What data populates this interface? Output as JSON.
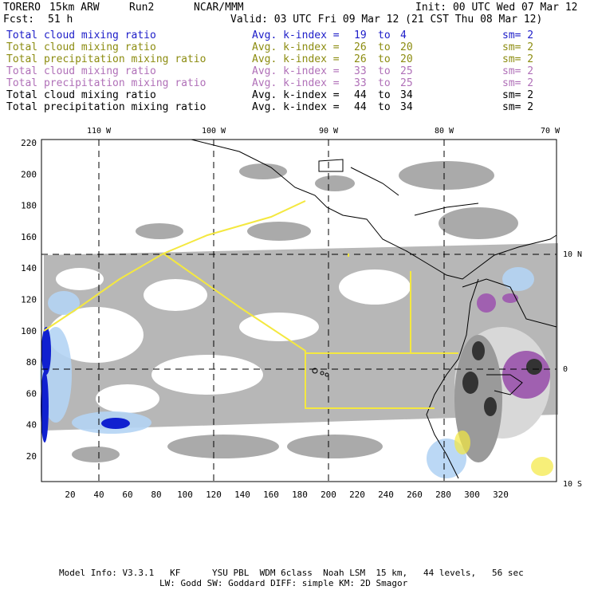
{
  "header": {
    "model": "TORERO",
    "resolution": "15km ARW",
    "run": "Run2",
    "org": "NCAR/MMM",
    "init": "Init: 00 UTC Wed 07 Mar 12",
    "fcst_label": "Fcst:",
    "fcst_value": "51 h",
    "valid": "Valid: 03 UTC Fri 09 Mar 12 (21 CST Thu 08 Mar 12)"
  },
  "fields": [
    {
      "name": "Total cloud mixing ratio",
      "k": "Avg. k-index =",
      "k1": "19",
      "to": "to",
      "k2": "4",
      "sm": "sm= 2",
      "color": "#1c1cc8"
    },
    {
      "name": "Total cloud mixing ratio",
      "k": "Avg. k-index =",
      "k1": "26",
      "to": "to",
      "k2": "20",
      "sm": "sm= 2",
      "color": "#8c8c10"
    },
    {
      "name": "Total precipitation mixing ratio",
      "k": "Avg. k-index =",
      "k1": "26",
      "to": "to",
      "k2": "20",
      "sm": "sm= 2",
      "color": "#8c8c10"
    },
    {
      "name": "Total cloud mixing ratio",
      "k": "Avg. k-index =",
      "k1": "33",
      "to": "to",
      "k2": "25",
      "sm": "sm= 2",
      "color": "#b070b8"
    },
    {
      "name": "Total precipitation mixing ratio",
      "k": "Avg. k-index =",
      "k1": "33",
      "to": "to",
      "k2": "25",
      "sm": "sm= 2",
      "color": "#b070b8"
    },
    {
      "name": "Total cloud mixing ratio",
      "k": "Avg. k-index =",
      "k1": "44",
      "to": "to",
      "k2": "34",
      "sm": "sm= 2",
      "color": "#000000"
    },
    {
      "name": "Total precipitation mixing ratio",
      "k": "Avg. k-index =",
      "k1": "44",
      "to": "to",
      "k2": "34",
      "sm": "sm= 2",
      "color": "#000000"
    }
  ],
  "map": {
    "lon_labels": [
      "110 W",
      "100 W",
      "90 W",
      "80 W",
      "70 W"
    ],
    "lat_labels": [
      "10 N",
      "0",
      "10 S"
    ],
    "x_ticks": [
      "20",
      "40",
      "60",
      "80",
      "100",
      "120",
      "140",
      "160",
      "180",
      "200",
      "220",
      "240",
      "260",
      "280",
      "300",
      "320"
    ],
    "y_ticks": [
      "20",
      "40",
      "60",
      "80",
      "100",
      "120",
      "140",
      "160",
      "180",
      "200",
      "220"
    ],
    "colors": {
      "gray_cloud": "#aaaaaa",
      "light_blue": "#b4d4f4",
      "blue": "#1020d0",
      "purple": "#a060b0",
      "yellow_line": "#f4e840",
      "dark": "#333333"
    }
  },
  "footer": {
    "line1": "Model Info: V3.3.1   KF      YSU PBL  WDM 6class  Noah LSM  15 km,   44 levels,   56 sec",
    "line2": "LW: Godd SW: Goddard DIFF: simple KM: 2D Smagor"
  }
}
